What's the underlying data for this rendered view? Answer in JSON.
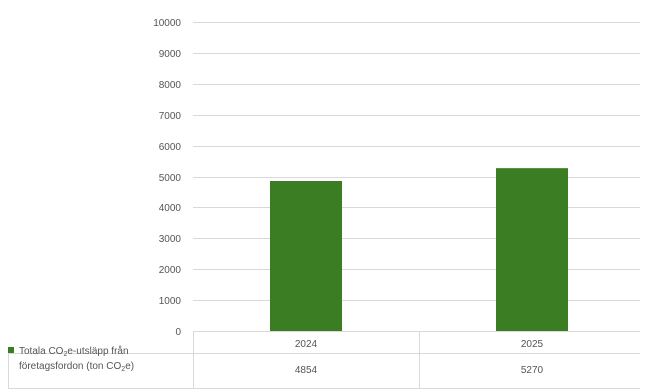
{
  "colors": {
    "bar": "#3a7d22",
    "grid": "#d9d9d9",
    "text": "#555555"
  },
  "legend": {
    "line1_pre": "Totala CO",
    "line1_sub": "2",
    "line1_post": "e-utsläpp från",
    "line2_pre": "företagsfordon (ton CO",
    "line2_sub": "2",
    "line2_post": "e)"
  },
  "chart_data": {
    "type": "bar",
    "categories": [
      "2024",
      "2025"
    ],
    "series": [
      {
        "name": "Totala CO2e-utsläpp från företagsfordon (ton CO2e)",
        "values": [
          4854,
          5270
        ]
      }
    ],
    "ylim": [
      0,
      10000
    ],
    "yticks": [
      0,
      1000,
      2000,
      3000,
      4000,
      5000,
      6000,
      7000,
      8000,
      9000,
      10000
    ],
    "grid": true,
    "data_table": true,
    "legend_position": "left-of-data-table",
    "title": "",
    "xlabel": "",
    "ylabel": ""
  }
}
